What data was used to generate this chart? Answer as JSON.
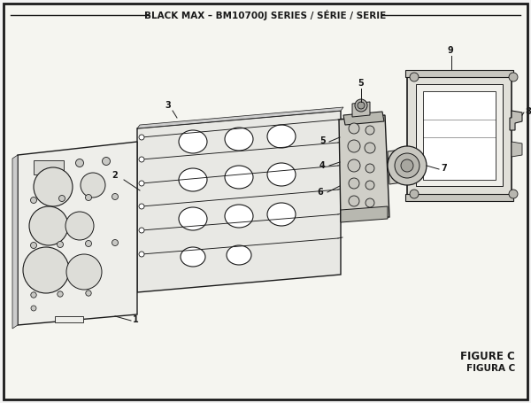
{
  "title": "BLACK MAX – BM10700J SERIES / SÉRIE / SERIE",
  "figure_label": "FIGURE C",
  "figura_label": "FIGURA C",
  "bg_color": "#f2f2f2",
  "border_color": "#1a1a1a",
  "line_color": "#1a1a1a",
  "text_color": "#1a1a1a",
  "title_fontsize": 7.5,
  "label_fontsize": 7,
  "figure_label_fontsize": 8.5,
  "inner_bg": "#f5f5f0"
}
